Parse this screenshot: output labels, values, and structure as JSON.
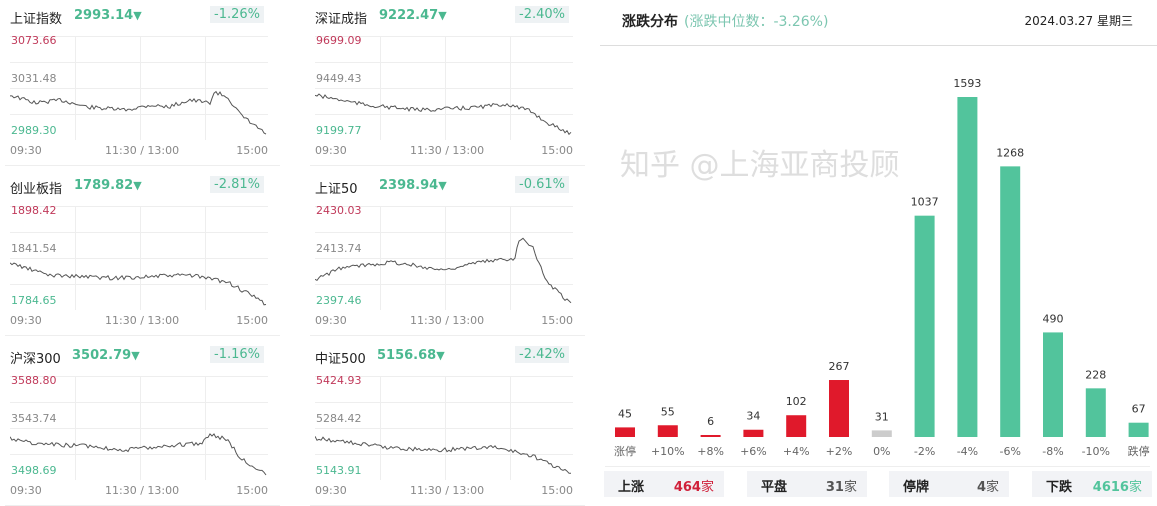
{
  "indices": [
    {
      "name": "上证指数",
      "value": "2993.14",
      "change": "-1.26%",
      "high": "3073.66",
      "mid": "3031.48",
      "low": "2989.30"
    },
    {
      "name": "深证成指",
      "value": "9222.47",
      "change": "-2.40%",
      "high": "9699.09",
      "mid": "9449.43",
      "low": "9199.77"
    },
    {
      "name": "创业板指",
      "value": "1789.82",
      "change": "-2.81%",
      "high": "1898.42",
      "mid": "1841.54",
      "low": "1784.65"
    },
    {
      "name": "上证50",
      "value": "2398.94",
      "change": "-0.61%",
      "high": "2430.03",
      "mid": "2413.74",
      "low": "2397.46"
    },
    {
      "name": "沪深300",
      "value": "3502.79",
      "change": "-1.16%",
      "high": "3588.80",
      "mid": "3543.74",
      "low": "3498.69"
    },
    {
      "name": "中证500",
      "value": "5156.68",
      "change": "-2.42%",
      "high": "5424.93",
      "mid": "5284.42",
      "low": "5143.91"
    }
  ],
  "times": {
    "start": "09:30",
    "mid": "11:30 / 13:00",
    "end": "15:00"
  },
  "down_arrow": "▼",
  "distribution": {
    "title": "涨跌分布",
    "median": "(涨跌中位数：-3.26%)",
    "date": "2024.03.27 星期三",
    "up_color": "#e0192b",
    "down_color": "#52c49c",
    "flat_color": "#cccccc",
    "chart_data": {
      "type": "bar",
      "categories": [
        "涨停",
        "+10%",
        "+8%",
        "+6%",
        "+4%",
        "+2%",
        "0%",
        "-2%",
        "-4%",
        "-6%",
        "-8%",
        "-10%",
        "跌停"
      ],
      "values": [
        45,
        55,
        6,
        34,
        102,
        267,
        31,
        1037,
        1593,
        1268,
        490,
        228,
        67
      ]
    },
    "summary": [
      {
        "label": "上涨",
        "value": "464",
        "unit": "家",
        "color": "#d0203a"
      },
      {
        "label": "平盘",
        "value": "31",
        "unit": "家",
        "color": "#555555"
      },
      {
        "label": "停牌",
        "value": "4",
        "unit": "家",
        "color": "#555555"
      },
      {
        "label": "下跌",
        "value": "4616",
        "unit": "家",
        "color": "#52c49c"
      }
    ],
    "watermark": "知乎 @上海亚商投顾"
  }
}
